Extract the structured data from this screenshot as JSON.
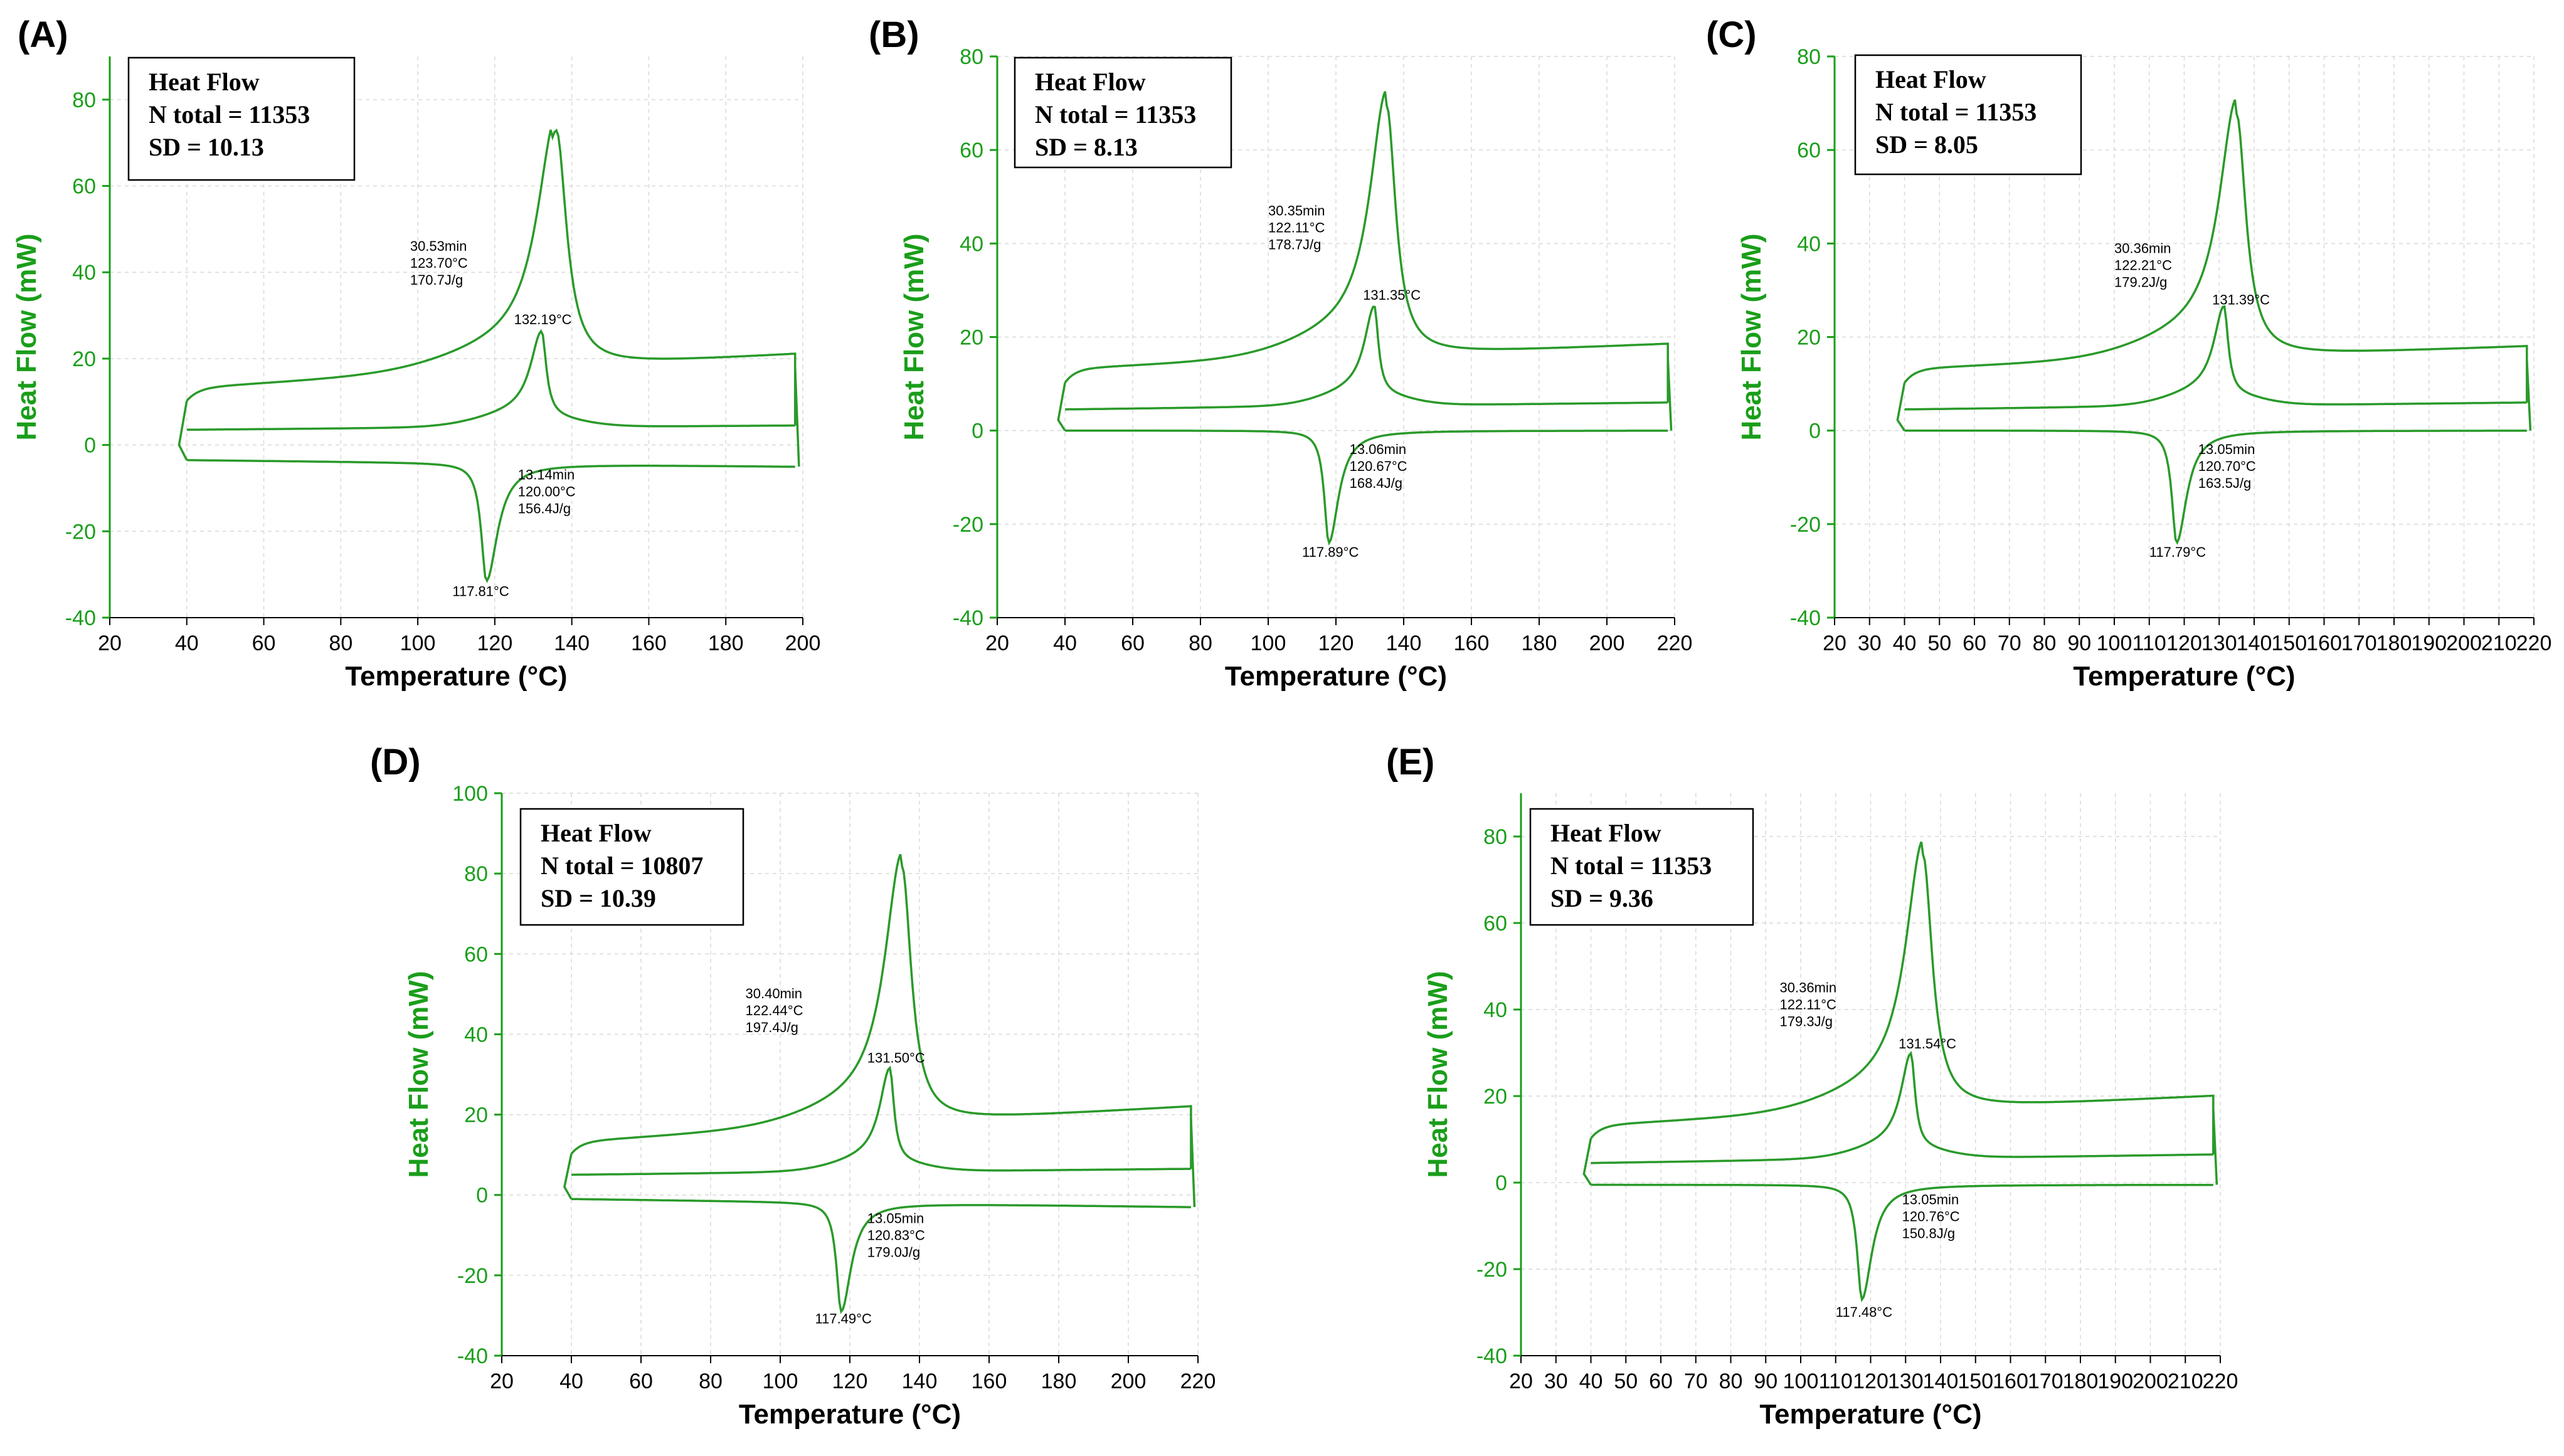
{
  "figure": {
    "axis_color": "#1a9e1a",
    "curve_color": "#2a9a2a",
    "grid_color": "#d9d9d9"
  },
  "chart_data": [
    {
      "type": "line",
      "panel_label": "(A)",
      "xlabel": "Temperature (°C)",
      "ylabel": "Heat Flow (mW)",
      "xlim": [
        20,
        200
      ],
      "ylim": [
        -40,
        90
      ],
      "xticks": [
        20,
        40,
        60,
        80,
        100,
        120,
        140,
        160,
        180,
        200
      ],
      "yticks": [
        -40,
        -20,
        0,
        20,
        40,
        60,
        80
      ],
      "grid": true,
      "legend": {
        "title": "Heat Flow",
        "lines": [
          "N total = 11353",
          "SD = 10.13"
        ],
        "placement": "top-left"
      },
      "peaks": {
        "first_heat": [
          136,
          73
        ],
        "cooling": [
          117.81,
          -31.5
        ],
        "second_heat": [
          132.19,
          26
        ]
      },
      "plateaus": {
        "first_heat_end": 18,
        "second_heat_start": 3.5,
        "second_heat_end": 4.5,
        "cooling_start": -3.5,
        "cooling_end": -5
      },
      "annotations": [
        {
          "lines": [
            "30.53min",
            "123.70°C",
            "170.7J/g"
          ],
          "x": 98,
          "y": 45
        },
        {
          "lines": [
            "132.19°C"
          ],
          "x": 125,
          "y": 28
        },
        {
          "lines": [
            "13.14min",
            "120.00°C",
            "156.4J/g"
          ],
          "x": 126,
          "y": -8
        },
        {
          "lines": [
            "117.81°C"
          ],
          "x": 109,
          "y": -35
        }
      ]
    },
    {
      "type": "line",
      "panel_label": "(B)",
      "xlabel": "Temperature (°C)",
      "ylabel": "Heat Flow (mW)",
      "xlim": [
        20,
        220
      ],
      "ylim": [
        -40,
        80
      ],
      "xticks": [
        20,
        40,
        60,
        80,
        100,
        120,
        140,
        160,
        180,
        200,
        220
      ],
      "yticks": [
        -40,
        -20,
        0,
        20,
        40,
        60,
        80
      ],
      "grid": true,
      "legend": {
        "title": "Heat Flow",
        "lines": [
          "N total = 11353",
          "SD = 8.13"
        ],
        "placement": "top-left"
      },
      "peaks": {
        "first_heat": [
          135,
          69
        ],
        "cooling": [
          117.89,
          -24
        ],
        "second_heat": [
          131.35,
          26
        ]
      },
      "plateaus": {
        "first_heat_end": 15.5,
        "second_heat_start": 4.5,
        "second_heat_end": 6,
        "cooling_start": 0,
        "cooling_end": 0
      },
      "annotations": [
        {
          "lines": [
            "30.35min",
            "122.11°C",
            "178.7J/g"
          ],
          "x": 100,
          "y": 46
        },
        {
          "lines": [
            "131.35°C"
          ],
          "x": 128,
          "y": 28
        },
        {
          "lines": [
            "13.06min",
            "120.67°C",
            "168.4J/g"
          ],
          "x": 124,
          "y": -5
        },
        {
          "lines": [
            "117.89°C"
          ],
          "x": 110,
          "y": -27
        }
      ]
    },
    {
      "type": "line",
      "panel_label": "(C)",
      "xlabel": "Temperature (°C)",
      "ylabel": "Heat Flow (mW)",
      "xlim": [
        20,
        220
      ],
      "ylim": [
        -40,
        80
      ],
      "xticks": [
        20,
        30,
        40,
        50,
        60,
        70,
        80,
        90,
        100,
        110,
        120,
        130,
        140,
        150,
        160,
        170,
        180,
        190,
        200,
        210,
        220
      ],
      "yticks": [
        -40,
        -20,
        0,
        20,
        40,
        60,
        80
      ],
      "grid": true,
      "legend": {
        "title": "Heat Flow",
        "lines": [
          "N total = 11353",
          "SD = 8.05"
        ],
        "placement": "top-left"
      },
      "peaks": {
        "first_heat": [
          135,
          67
        ],
        "cooling": [
          117.79,
          -24
        ],
        "second_heat": [
          131.39,
          26
        ]
      },
      "plateaus": {
        "first_heat_end": 15,
        "second_heat_start": 4.5,
        "second_heat_end": 6,
        "cooling_start": 0,
        "cooling_end": 0
      },
      "annotations": [
        {
          "lines": [
            "30.36min",
            "122.21°C",
            "179.2J/g"
          ],
          "x": 100,
          "y": 38
        },
        {
          "lines": [
            "131.39°C"
          ],
          "x": 128,
          "y": 27
        },
        {
          "lines": [
            "13.05min",
            "120.70°C",
            "163.5J/g"
          ],
          "x": 124,
          "y": -5
        },
        {
          "lines": [
            "117.79°C"
          ],
          "x": 110,
          "y": -27
        }
      ]
    },
    {
      "type": "line",
      "panel_label": "(D)",
      "xlabel": "Temperature (°C)",
      "ylabel": "Heat Flow (mW)",
      "xlim": [
        20,
        220
      ],
      "ylim": [
        -40,
        100
      ],
      "xticks": [
        20,
        40,
        60,
        80,
        100,
        120,
        140,
        160,
        180,
        200,
        220
      ],
      "yticks": [
        -40,
        -20,
        0,
        20,
        40,
        60,
        80,
        100
      ],
      "grid": true,
      "legend": {
        "title": "Heat Flow",
        "lines": [
          "N total = 10807",
          "SD = 10.39"
        ],
        "placement": "top-left"
      },
      "peaks": {
        "first_heat": [
          135,
          83
        ],
        "cooling": [
          117.49,
          -29
        ],
        "second_heat": [
          131.5,
          31
        ]
      },
      "plateaus": {
        "first_heat_end": 19,
        "second_heat_start": 5,
        "second_heat_end": 6.5,
        "cooling_start": -1,
        "cooling_end": -3
      },
      "annotations": [
        {
          "lines": [
            "30.40min",
            "122.44°C",
            "197.4J/g"
          ],
          "x": 90,
          "y": 49
        },
        {
          "lines": [
            "131.50°C"
          ],
          "x": 125,
          "y": 33
        },
        {
          "lines": [
            "13.05min",
            "120.83°C",
            "179.0J/g"
          ],
          "x": 125,
          "y": -7
        },
        {
          "lines": [
            "117.49°C"
          ],
          "x": 110,
          "y": -32
        }
      ]
    },
    {
      "type": "line",
      "panel_label": "(E)",
      "xlabel": "Temperature (°C)",
      "ylabel": "Heat Flow (mW)",
      "xlim": [
        20,
        220
      ],
      "ylim": [
        -40,
        90
      ],
      "xticks": [
        20,
        30,
        40,
        50,
        60,
        70,
        80,
        90,
        100,
        110,
        120,
        130,
        140,
        150,
        160,
        170,
        180,
        190,
        200,
        210,
        220
      ],
      "yticks": [
        -40,
        -20,
        0,
        20,
        40,
        60,
        80
      ],
      "grid": true,
      "legend": {
        "title": "Heat Flow",
        "lines": [
          "N total = 11353",
          "SD = 9.36"
        ],
        "placement": "top-left"
      },
      "peaks": {
        "first_heat": [
          135,
          76
        ],
        "cooling": [
          117.48,
          -27
        ],
        "second_heat": [
          131.54,
          29
        ]
      },
      "plateaus": {
        "first_heat_end": 17,
        "second_heat_start": 4.5,
        "second_heat_end": 6.5,
        "cooling_start": -0.5,
        "cooling_end": -0.5
      },
      "annotations": [
        {
          "lines": [
            "30.36min",
            "122.11°C",
            "179.3J/g"
          ],
          "x": 94,
          "y": 44
        },
        {
          "lines": [
            "131.54°C"
          ],
          "x": 128,
          "y": 31
        },
        {
          "lines": [
            "13.05min",
            "120.76°C",
            "150.8J/g"
          ],
          "x": 129,
          "y": -5
        },
        {
          "lines": [
            "117.48°C"
          ],
          "x": 110,
          "y": -31
        }
      ]
    }
  ]
}
